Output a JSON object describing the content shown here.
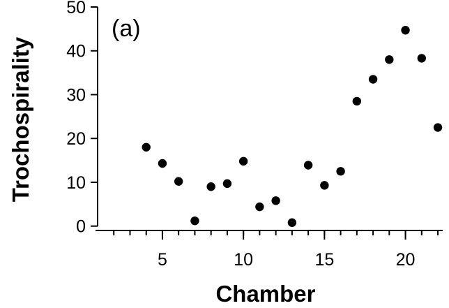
{
  "chart_data": {
    "type": "scatter",
    "panel_label": "(a)",
    "xlabel": "Chamber",
    "ylabel": "Trochospirality",
    "xlim": [
      1,
      22.3
    ],
    "ylim": [
      -1,
      50
    ],
    "x_ticks": [
      5,
      10,
      15,
      20
    ],
    "x_minor_ticks": [
      2,
      3,
      4,
      5,
      6,
      7,
      8,
      9,
      10,
      11,
      12,
      13,
      14,
      15,
      16,
      17,
      18,
      19,
      20,
      21,
      22
    ],
    "y_ticks": [
      0,
      10,
      20,
      30,
      40,
      50
    ],
    "grid": false,
    "legend": "none",
    "marker_color": "#000000",
    "points": [
      {
        "x": 4,
        "y": 18
      },
      {
        "x": 5,
        "y": 14.3
      },
      {
        "x": 6,
        "y": 10.2
      },
      {
        "x": 7,
        "y": 1.2
      },
      {
        "x": 8,
        "y": 9
      },
      {
        "x": 9,
        "y": 9.7
      },
      {
        "x": 10,
        "y": 14.8
      },
      {
        "x": 11,
        "y": 4.4
      },
      {
        "x": 12,
        "y": 5.8
      },
      {
        "x": 13,
        "y": 0.8
      },
      {
        "x": 14,
        "y": 13.9
      },
      {
        "x": 15,
        "y": 9.3
      },
      {
        "x": 16,
        "y": 12.5
      },
      {
        "x": 17,
        "y": 28.5
      },
      {
        "x": 18,
        "y": 33.5
      },
      {
        "x": 19,
        "y": 38
      },
      {
        "x": 20,
        "y": 44.7
      },
      {
        "x": 21,
        "y": 38.3
      },
      {
        "x": 22,
        "y": 22.5
      }
    ]
  }
}
